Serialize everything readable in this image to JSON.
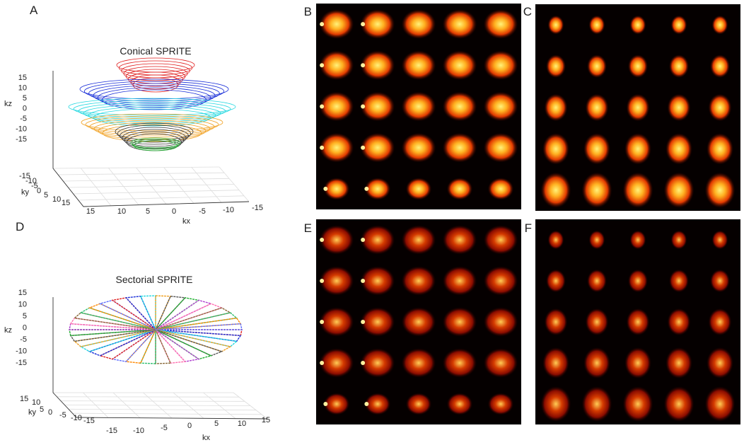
{
  "panels": [
    {
      "label": "A",
      "title": "Conical SPRITE",
      "kz": {
        "label": "kz",
        "ticks": [
          "15",
          "10",
          "5",
          "0",
          "-5",
          "-10",
          "-15"
        ]
      },
      "ky": {
        "label": "ky",
        "ticks": [
          "-15",
          "-10",
          "-5",
          "0",
          "5",
          "10",
          "15"
        ]
      },
      "kx": {
        "label": "kx",
        "ticks": [
          "15",
          "10",
          "5",
          "0",
          "-5",
          "-10",
          "-15"
        ]
      }
    },
    {
      "label": "B"
    },
    {
      "label": "C"
    },
    {
      "label": "D",
      "title": "Sectorial SPRITE",
      "kz": {
        "label": "kz",
        "ticks": [
          "15",
          "10",
          "5",
          "0",
          "-5",
          "-10",
          "-15"
        ]
      },
      "ky": {
        "label": "ky",
        "ticks": [
          "15",
          "10",
          "5",
          "0",
          "-5",
          "-10",
          "-15"
        ]
      },
      "kx": {
        "label": "kx",
        "ticks": [
          "-15",
          "-10",
          "-5",
          "0",
          "5",
          "10",
          "15"
        ]
      }
    },
    {
      "label": "E"
    },
    {
      "label": "F"
    }
  ]
}
